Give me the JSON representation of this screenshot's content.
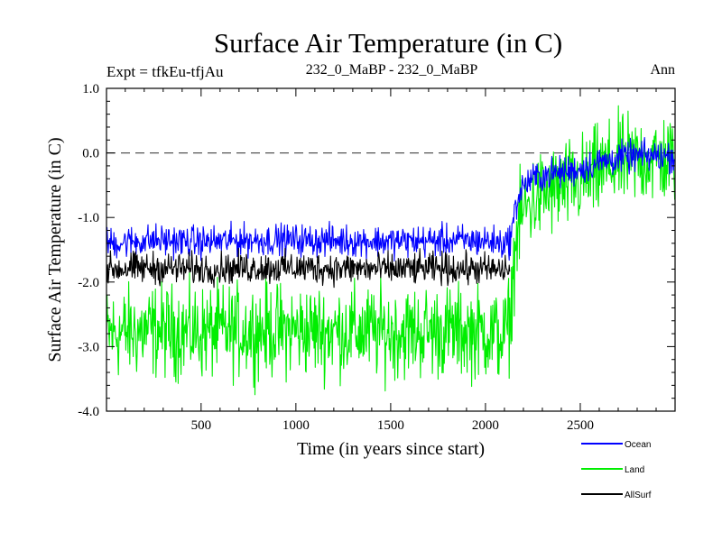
{
  "chart_data": {
    "type": "line",
    "title": "Surface Air Temperature (in C)",
    "subtitle_left": "Expt = tfkEu-tfjAu",
    "subtitle_center": "232_0_MaBP - 232_0_MaBP",
    "subtitle_right": "Ann",
    "xlabel": "Time (in years since start)",
    "ylabel": "Surface Air Temperature (in C)",
    "xlim": [
      1,
      3000
    ],
    "ylim": [
      -4.0,
      1.0
    ],
    "x_ticks": [
      500,
      1000,
      1500,
      2000,
      2500
    ],
    "x_tick_labels": [
      "500",
      "1000",
      "1500",
      "2000",
      "2500"
    ],
    "y_ticks": [
      -4.0,
      -3.0,
      -2.0,
      -1.0,
      0.0,
      1.0
    ],
    "y_tick_labels": [
      "-4.0",
      "-3.0",
      "-2.0",
      "-1.0",
      "0.0",
      "1.0"
    ],
    "reference_line": {
      "y": 0.0,
      "style": "dashed",
      "color": "#555555"
    },
    "grid": false,
    "legend_position": "below-right",
    "series": [
      {
        "name": "Ocean",
        "color": "#0000ff",
        "x": [
          1,
          250,
          500,
          750,
          1000,
          1250,
          1500,
          1750,
          2000,
          2100,
          2130,
          2150,
          2170,
          2200,
          2250,
          2300,
          2400,
          2500,
          2600,
          2700,
          2800,
          2900,
          3000
        ],
        "y": [
          -1.4,
          -1.35,
          -1.38,
          -1.35,
          -1.35,
          -1.36,
          -1.37,
          -1.36,
          -1.36,
          -1.4,
          -1.35,
          -1.0,
          -0.7,
          -0.5,
          -0.4,
          -0.35,
          -0.3,
          -0.25,
          -0.15,
          -0.08,
          -0.05,
          -0.05,
          -0.05
        ],
        "noise": 0.12
      },
      {
        "name": "Land",
        "color": "#00ee00",
        "x": [
          1,
          250,
          500,
          750,
          1000,
          1250,
          1500,
          1750,
          2000,
          2100,
          2130,
          2150,
          2170,
          2200,
          2250,
          2300,
          2400,
          2500,
          2600,
          2700,
          2800,
          2900,
          3000
        ],
        "y": [
          -2.8,
          -2.75,
          -2.78,
          -2.75,
          -2.75,
          -2.76,
          -2.78,
          -2.76,
          -2.78,
          -2.85,
          -2.6,
          -1.7,
          -1.2,
          -0.9,
          -0.75,
          -0.65,
          -0.55,
          -0.45,
          -0.3,
          -0.15,
          -0.1,
          -0.1,
          -0.1
        ],
        "noise": 0.35
      },
      {
        "name": "AllSurf",
        "color": "#000000",
        "x": [
          1,
          250,
          500,
          750,
          1000,
          1250,
          1500,
          1750,
          2000,
          2100,
          2130
        ],
        "y": [
          -1.8,
          -1.78,
          -1.8,
          -1.78,
          -1.78,
          -1.79,
          -1.8,
          -1.79,
          -1.8,
          -1.82,
          -1.78
        ],
        "noise": 0.12
      }
    ]
  }
}
